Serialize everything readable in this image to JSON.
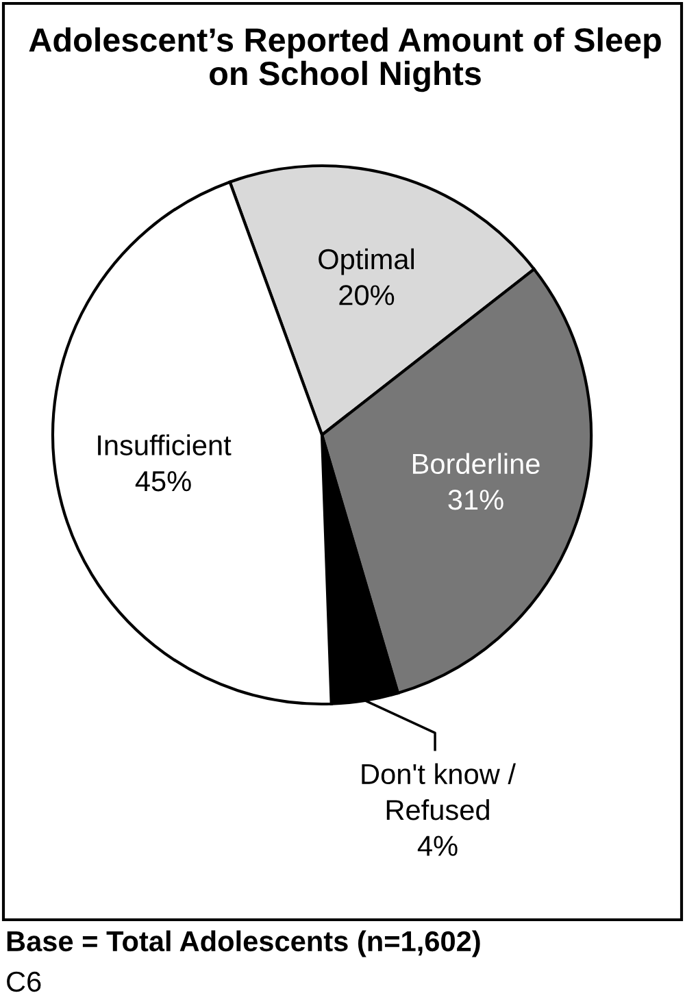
{
  "chart_data": {
    "type": "pie",
    "title": "Adolescent’s Reported Amount of Sleep on School Nights",
    "categories": [
      "Optimal",
      "Borderline",
      "Don't know /\nRefused",
      "Insufficient"
    ],
    "values": [
      20,
      31,
      4,
      45
    ],
    "value_labels": [
      "20%",
      "31%",
      "4%",
      "45%"
    ],
    "colors": [
      "#d9d9d9",
      "#777777",
      "#000000",
      "#ffffff"
    ],
    "annotations": [
      "Base = Total Adolescents (n=1,602)",
      "C6"
    ]
  }
}
